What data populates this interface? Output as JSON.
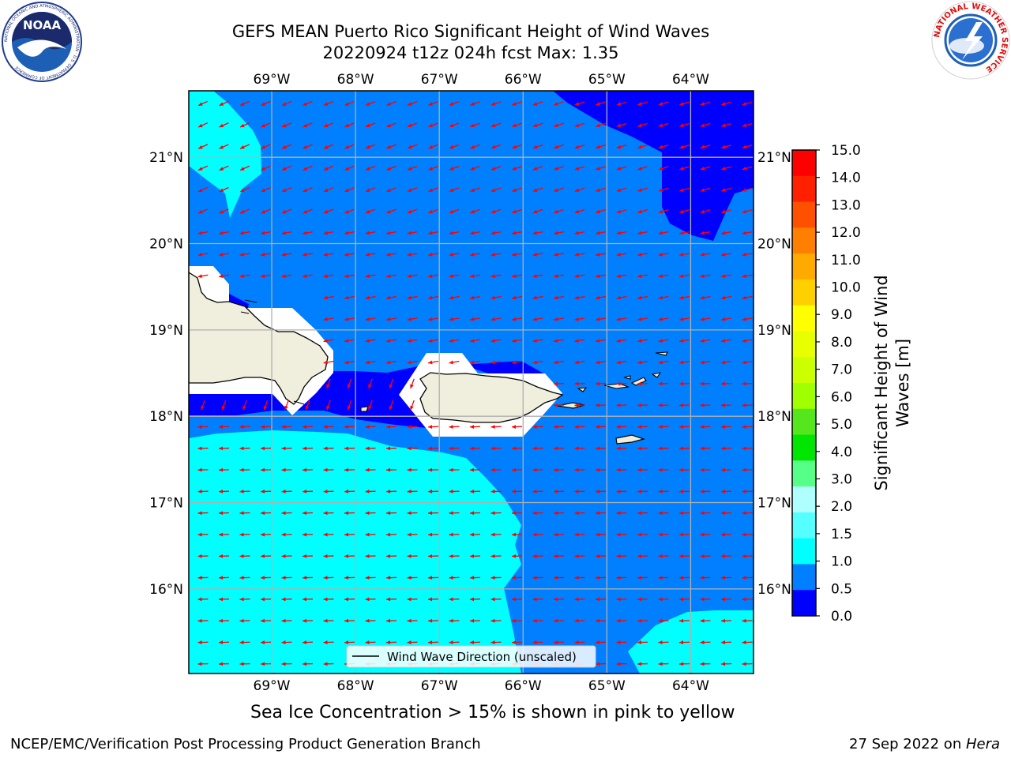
{
  "header": {
    "title_line1": "GEFS MEAN Puerto Rico Significant Height of Wind Waves",
    "title_line2": "20220924 t12z 024h fcst   Max: 1.35"
  },
  "map": {
    "lon_labels": [
      "69°W",
      "68°W",
      "67°W",
      "66°W",
      "65°W",
      "64°W"
    ],
    "lat_labels": [
      "21°N",
      "20°N",
      "19°N",
      "18°N",
      "17°N",
      "16°N"
    ],
    "lon_values": [
      -69,
      -68,
      -67,
      -66,
      -65,
      -64
    ],
    "lat_values": [
      21,
      20,
      19,
      18,
      17,
      16
    ],
    "extent": {
      "lon_min": -69.99,
      "lon_max": -63.25,
      "lat_min": 15.02,
      "lat_max": 21.77
    },
    "arrow_direction_note": "arrows point toward west-southwest",
    "legend_label": "Wind Wave Direction (unscaled)",
    "colors": {
      "band_0_0_5": "#0000ff",
      "band_0_5_1_0": "#0080ff",
      "band_1_0_1_5": "#00ffff",
      "arrow": "#ff0000",
      "land": "#f0eedc"
    }
  },
  "colorbar": {
    "title": "Significant Height of Wind Waves [m]",
    "title_line1": "Significant Height of Wind",
    "title_line2": "Waves [m]",
    "ticks": [
      "15.0",
      "14.0",
      "13.0",
      "12.0",
      "11.0",
      "10.0",
      "9.0",
      "8.0",
      "7.0",
      "6.0",
      "5.0",
      "4.0",
      "3.0",
      "2.0",
      "1.5",
      "1.0",
      "0.5",
      "0.0"
    ],
    "colors_top_to_bottom": [
      "#ff0000",
      "#ff2000",
      "#ff5000",
      "#ff8000",
      "#ffaa00",
      "#ffd000",
      "#ffff00",
      "#e8ff00",
      "#ccff00",
      "#a0ff00",
      "#55e61d",
      "#00e600",
      "#55ff88",
      "#b0ffff",
      "#55ffff",
      "#00ffff",
      "#0080ff",
      "#0000ff"
    ]
  },
  "subtitle": "Sea Ice Concentration > 15% is shown in pink to yellow",
  "footer": {
    "left": "NCEP/EMC/Verification Post Processing Product Generation Branch",
    "right_prefix": "27 Sep 2022 on ",
    "right_host": "Hera"
  },
  "logos": {
    "left": "NOAA",
    "left_ring": "NATIONAL OCEANIC AND ATMOSPHERIC ADMINISTRATION · U.S. DEPARTMENT OF COMMERCE",
    "right_ring": "NATIONAL WEATHER SERVICE"
  }
}
